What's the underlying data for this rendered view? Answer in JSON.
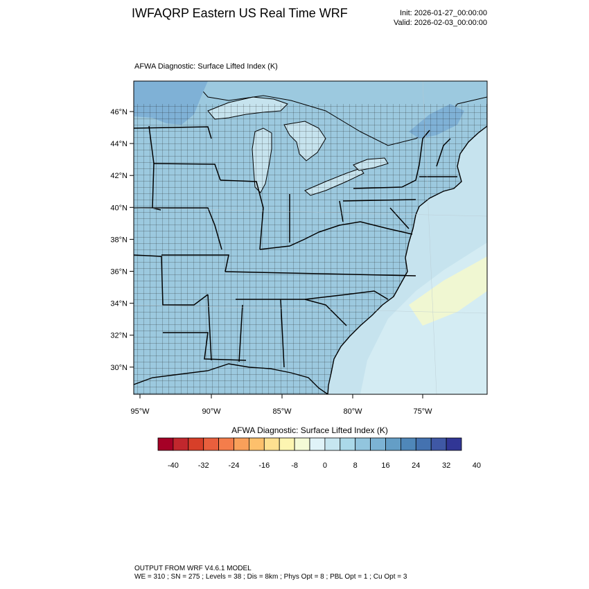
{
  "header": {
    "title": "IWFAQRP Eastern US Real Time WRF",
    "init": "Init: 2026-01-27_00:00:00",
    "valid": "Valid: 2026-02-03_00:00:00"
  },
  "map": {
    "field_title": "AFWA Diagnostic: Surface Lifted Index   (K)",
    "lat_labels": [
      "46°N",
      "44°N",
      "42°N",
      "40°N",
      "38°N",
      "36°N",
      "34°N",
      "32°N",
      "30°N"
    ],
    "lon_labels": [
      "95°W",
      "90°W",
      "85°W",
      "80°W",
      "75°W"
    ],
    "colors": {
      "land": "#9cc9df",
      "water": "#c6e3ee",
      "offshore": "#d4ecf3",
      "warm_patch": "#f0f7d2",
      "north_dark": "#7fb1d6",
      "boundary": "#000000"
    }
  },
  "colorbar": {
    "title": "AFWA Diagnostic: Surface Lifted Index  (K)",
    "tick_labels": [
      "-40",
      "-32",
      "-24",
      "-16",
      "-8",
      "0",
      "8",
      "16",
      "24",
      "32",
      "40"
    ],
    "colors": [
      "#a50026",
      "#c1272d",
      "#d73f29",
      "#e95f3d",
      "#f47d4b",
      "#f9a05a",
      "#fdc06c",
      "#fee090",
      "#fdf5b1",
      "#f4fad6",
      "#e0f3f8",
      "#c6e6f0",
      "#abd9e9",
      "#92c5de",
      "#7cb3d4",
      "#649ec6",
      "#4f87b9",
      "#4472b0",
      "#3f58a5",
      "#313695"
    ]
  },
  "footer": {
    "line1": "OUTPUT FROM WRF V4.6.1 MODEL",
    "line2": "WE = 310 ; SN = 275 ; Levels = 38 ; Dis = 8km ; Phys Opt = 8 ; PBL Opt = 1 ; Cu Opt = 3"
  }
}
